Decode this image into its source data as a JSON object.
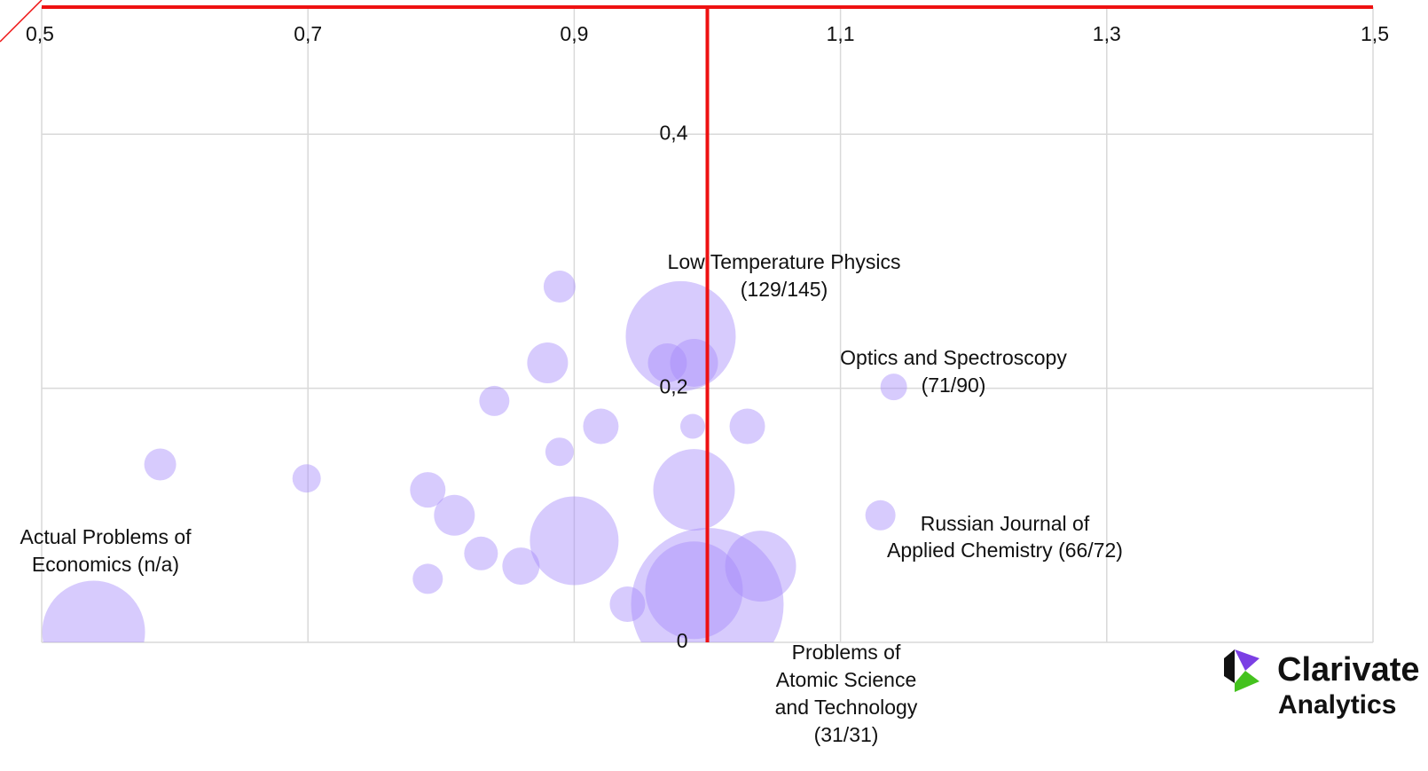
{
  "chart_data": {
    "type": "bubble",
    "xlim": [
      0.5,
      1.5
    ],
    "xticks": [
      {
        "value": 0.5,
        "label": "0,5"
      },
      {
        "value": 0.7,
        "label": "0,7"
      },
      {
        "value": 0.9,
        "label": "0,9"
      },
      {
        "value": 1.1,
        "label": "1,1"
      },
      {
        "value": 1.3,
        "label": "1,3"
      },
      {
        "value": 1.5,
        "label": "1,5"
      }
    ],
    "ylim": [
      0,
      0.5
    ],
    "yticks": [
      0,
      {
        "value": 0.2,
        "label": "0,2"
      },
      {
        "value": 0.4,
        "label": "0,4"
      }
    ],
    "grid": true,
    "reference_lines": {
      "x": 1,
      "y": 0.5,
      "color": "#ee1111"
    },
    "series": [
      {
        "color": "#a78bfa",
        "x": [
          0.889,
          0.98,
          0.97,
          0.99,
          0.88,
          0.84,
          1.14,
          0.92,
          0.989,
          1.03,
          0.889,
          0.589,
          0.699,
          0.79,
          0.99,
          0.81,
          1.13,
          0.9,
          0.83,
          0.86,
          1.04,
          0.79,
          0.94,
          1.0,
          0.99,
          0.539
        ],
        "values": [
          0.28,
          0.241,
          0.22,
          0.22,
          0.22,
          0.19,
          0.201,
          0.17,
          0.17,
          0.17,
          0.15,
          0.14,
          0.129,
          0.12,
          0.12,
          0.1,
          0.1,
          0.08,
          0.07,
          0.06,
          0.06,
          0.05,
          0.03,
          0.03,
          0.041,
          0.008
        ],
        "sizes": [
          18,
          62,
          22,
          27,
          23,
          17,
          15,
          20,
          14,
          20,
          16,
          18,
          16,
          20,
          46,
          23,
          17,
          50,
          19,
          21,
          40,
          17,
          20,
          86,
          55,
          58
        ]
      }
    ],
    "annotations": [
      [
        "Low Temperature Physics",
        "(129/145)"
      ],
      [
        "Optics and Spectroscopy",
        "(71/90)"
      ],
      [
        "Russian Journal of",
        "Applied Chemistry (66/72)"
      ],
      [
        "Actual Problems of",
        "Economics (n/a)"
      ],
      [
        "Problems of",
        "Atomic Science",
        "and  Technology",
        "(31/31)"
      ]
    ],
    "logo": [
      "Clarivate",
      "Analytics"
    ]
  }
}
